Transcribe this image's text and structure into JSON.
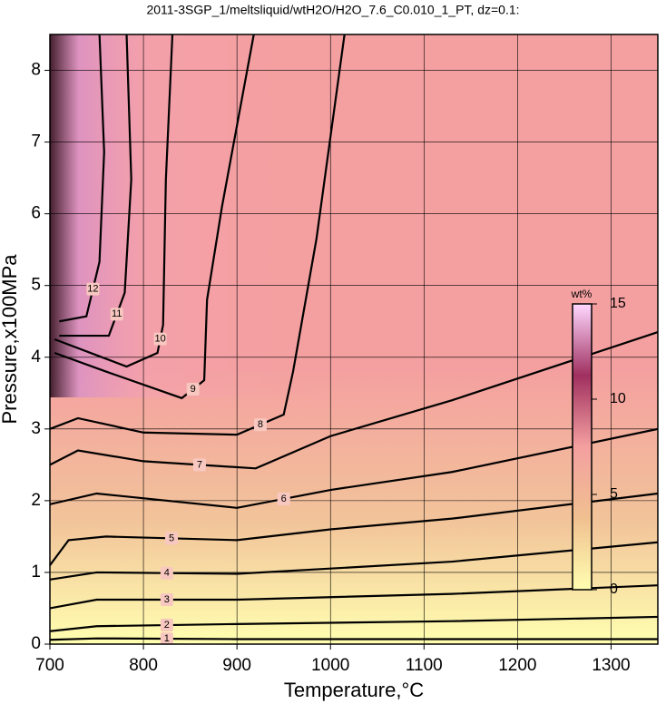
{
  "chart_data": {
    "type": "contour",
    "title": "2011-3SGP_1/meltsliquid/wtH2O/H2O_7.6_C0.010_1_PT, dz=0.1:",
    "x_label": "Temperature,°C",
    "y_label": "Pressure,x100MPa",
    "xlim": [
      700,
      1350
    ],
    "ylim": [
      0,
      8.5
    ],
    "xticks": [
      700,
      800,
      900,
      1000,
      1100,
      1200,
      1300
    ],
    "yticks": [
      0,
      1,
      2,
      3,
      4,
      5,
      6,
      7,
      8
    ],
    "grid": true,
    "contours": [
      {
        "level": 1,
        "x": [
          700,
          750,
          900,
          1350
        ],
        "y": [
          0.06,
          0.08,
          0.07,
          0.07
        ]
      },
      {
        "level": 2,
        "x": [
          700,
          750,
          900,
          1130,
          1350
        ],
        "y": [
          0.18,
          0.25,
          0.28,
          0.32,
          0.38
        ]
      },
      {
        "level": 3,
        "x": [
          700,
          750,
          900,
          1130,
          1350
        ],
        "y": [
          0.5,
          0.62,
          0.62,
          0.7,
          0.82
        ]
      },
      {
        "level": 4,
        "x": [
          700,
          750,
          900,
          1130,
          1350
        ],
        "y": [
          0.9,
          1.0,
          0.98,
          1.15,
          1.42
        ]
      },
      {
        "level": 5,
        "x": [
          700,
          720,
          760,
          900,
          1000,
          1130,
          1350
        ],
        "y": [
          1.1,
          1.45,
          1.5,
          1.45,
          1.6,
          1.75,
          2.1
        ]
      },
      {
        "level": 6,
        "x": [
          700,
          750,
          900,
          1000,
          1130,
          1350
        ],
        "y": [
          1.95,
          2.1,
          1.9,
          2.15,
          2.4,
          3.0
        ]
      },
      {
        "level": 7,
        "x": [
          700,
          730,
          800,
          920,
          1000,
          1130,
          1350
        ],
        "y": [
          2.5,
          2.7,
          2.55,
          2.45,
          2.9,
          3.4,
          4.35
        ]
      },
      {
        "level": 8,
        "x": [
          700,
          730,
          800,
          900,
          950,
          960,
          985,
          1015
        ],
        "y": [
          3.0,
          3.15,
          2.95,
          2.92,
          3.2,
          3.8,
          5.65,
          8.5
        ]
      },
      {
        "level": 9,
        "x": [
          705,
          760,
          841,
          865,
          868,
          884,
          918
        ],
        "y": [
          4.06,
          3.8,
          3.43,
          3.68,
          4.8,
          6.1,
          8.5
        ]
      },
      {
        "level": 10,
        "x": [
          705,
          782,
          815,
          821,
          824,
          831
        ],
        "y": [
          4.25,
          3.87,
          4.06,
          4.45,
          6.48,
          8.5
        ]
      },
      {
        "level": 11,
        "x": [
          710,
          763,
          780,
          787,
          782
        ],
        "y": [
          4.3,
          4.3,
          4.9,
          6.48,
          8.5
        ]
      },
      {
        "level": 12,
        "x": [
          710,
          739,
          753,
          758,
          753
        ],
        "y": [
          4.5,
          4.57,
          5.33,
          6.86,
          8.5
        ]
      }
    ],
    "colorbar": {
      "label": "wt%",
      "lim": [
        0,
        15
      ],
      "ticks": [
        0,
        5,
        10,
        15
      ],
      "colors": [
        "#ffffb0",
        "#f0c090",
        "#f4a0a0",
        "#a03060",
        "#ffd8ff"
      ]
    }
  }
}
